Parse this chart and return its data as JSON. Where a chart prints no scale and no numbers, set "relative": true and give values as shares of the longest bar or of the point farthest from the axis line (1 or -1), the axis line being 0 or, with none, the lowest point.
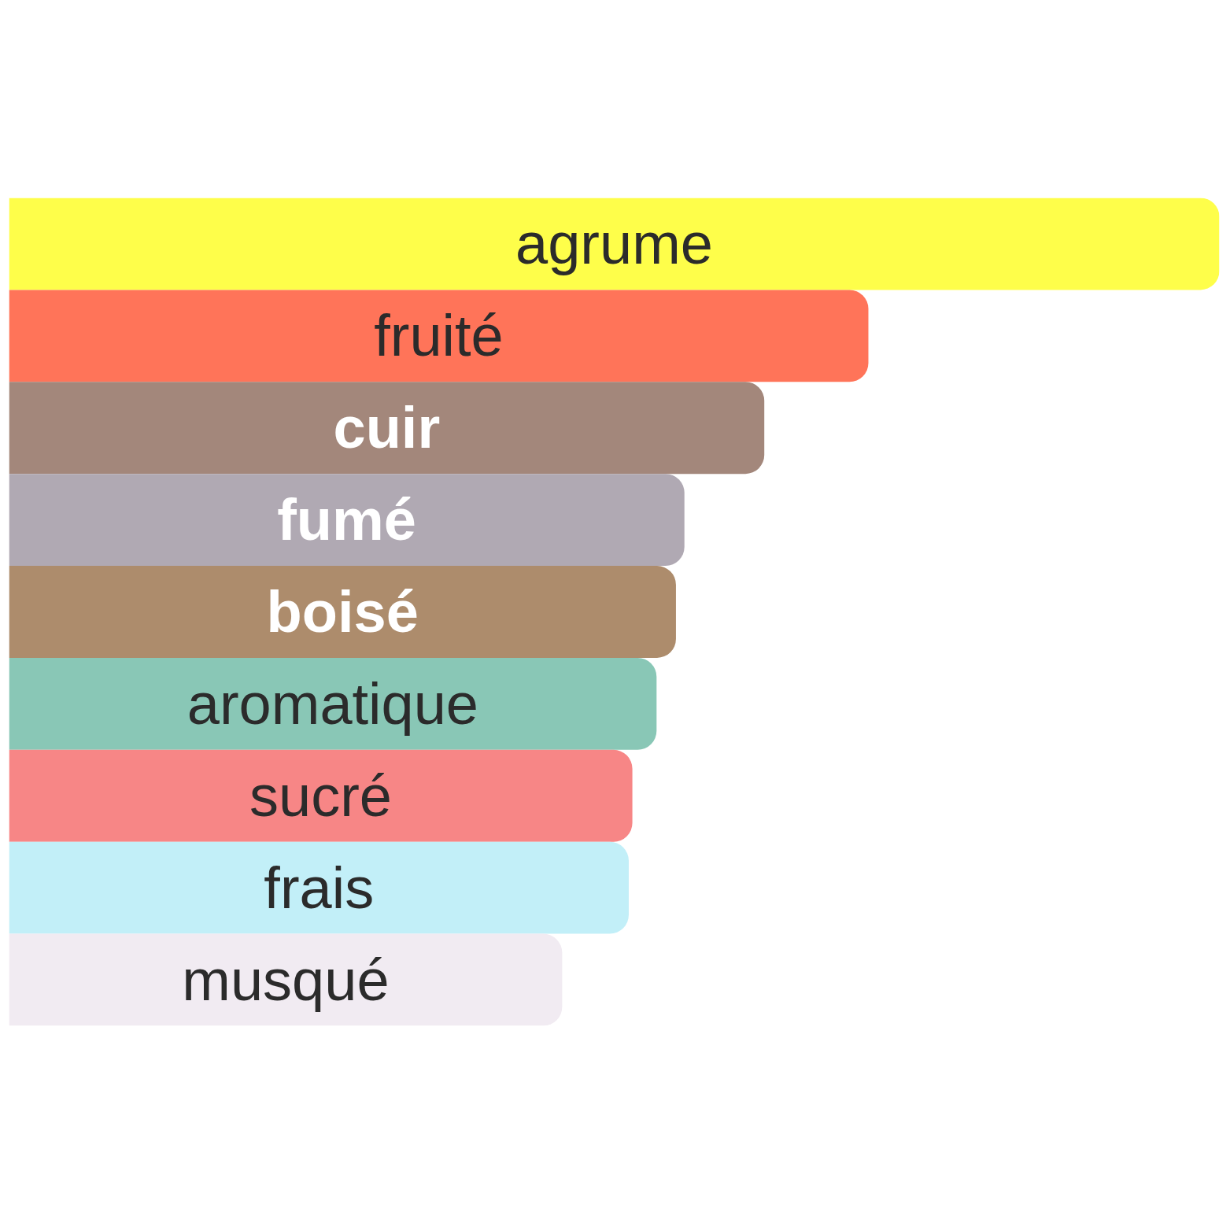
{
  "chart_data": {
    "type": "bar",
    "orientation": "horizontal",
    "relative": true,
    "tick_labels": false,
    "categories": [
      "agrume",
      "fruité",
      "cuir",
      "fumé",
      "boisé",
      "aromatique",
      "sucré",
      "frais",
      "musqué"
    ],
    "values": [
      1,
      0.71,
      0.624,
      0.558,
      0.551,
      0.535,
      0.515,
      0.512,
      0.457
    ],
    "colors": [
      "#fefe4a",
      "#ff7459",
      "#a3877b",
      "#b0a9b3",
      "#ad8c6c",
      "#89c7b6",
      "#f78686",
      "#c2eff8",
      "#f1ebf2"
    ]
  }
}
